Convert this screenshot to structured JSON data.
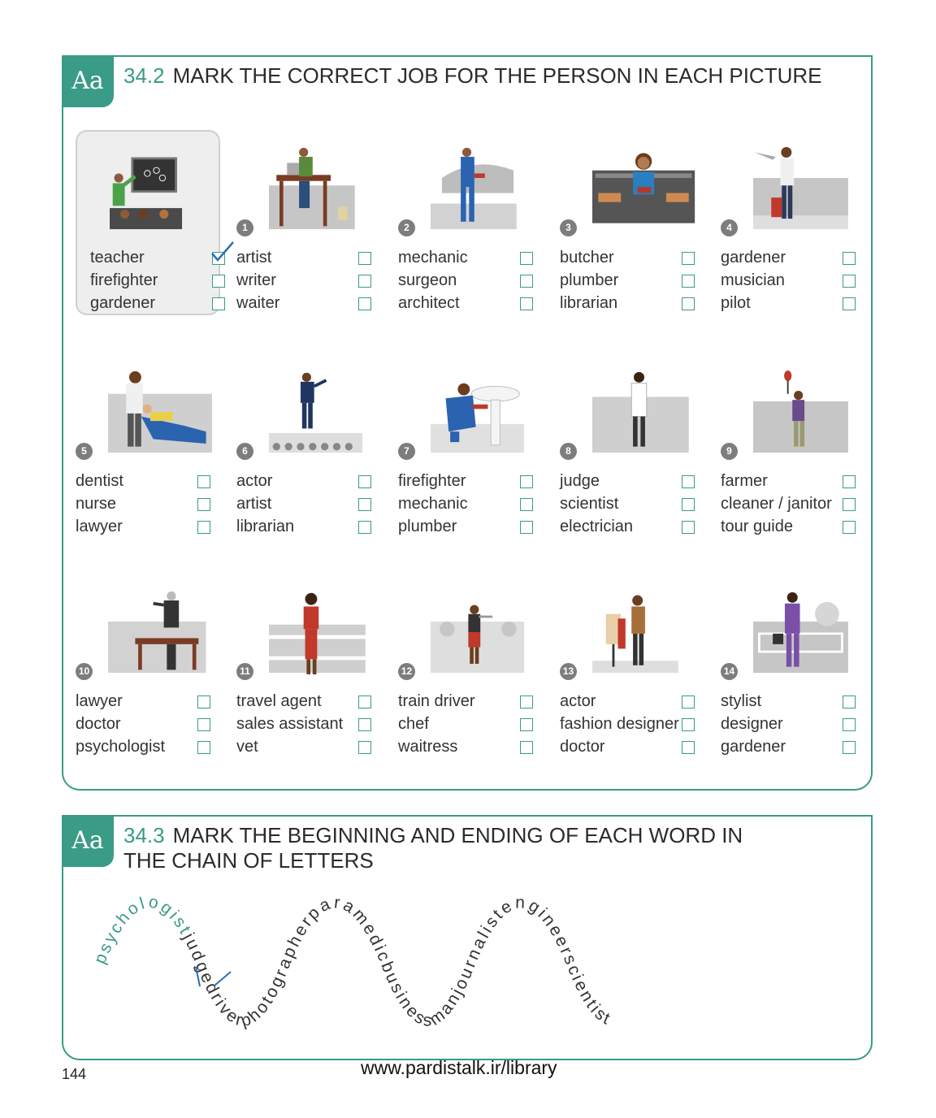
{
  "exercise_1": {
    "tab": "Aa",
    "number": "34.2",
    "title": "MARK THE CORRECT JOB FOR THE PERSON IN EACH PICTURE",
    "items": [
      {
        "badge": "",
        "options": [
          "teacher",
          "firefighter",
          "gardener"
        ],
        "checked": 0,
        "picture": "teacher-at-blackboard"
      },
      {
        "badge": "1",
        "options": [
          "artist",
          "writer",
          "waiter"
        ],
        "picture": "man-typing-at-desk"
      },
      {
        "badge": "2",
        "options": [
          "mechanic",
          "surgeon",
          "architect"
        ],
        "picture": "man-in-overalls-with-car"
      },
      {
        "badge": "3",
        "options": [
          "butcher",
          "plumber",
          "librarian"
        ],
        "picture": "woman-at-bookshelves"
      },
      {
        "badge": "4",
        "options": [
          "gardener",
          "musician",
          "pilot"
        ],
        "picture": "woman-with-suitcase-at-airport"
      },
      {
        "badge": "5",
        "options": [
          "dentist",
          "nurse",
          "lawyer"
        ],
        "picture": "man-with-patient-in-chair"
      },
      {
        "badge": "6",
        "options": [
          "actor",
          "artist",
          "librarian"
        ],
        "picture": "man-on-stage"
      },
      {
        "badge": "7",
        "options": [
          "firefighter",
          "mechanic",
          "plumber"
        ],
        "picture": "man-fixing-sink"
      },
      {
        "badge": "8",
        "options": [
          "judge",
          "scientist",
          "electrician"
        ],
        "picture": "woman-in-lab-coat"
      },
      {
        "badge": "9",
        "options": [
          "farmer",
          "cleaner / janitor",
          "tour guide"
        ],
        "picture": "woman-with-raised-paddle"
      },
      {
        "badge": "10",
        "options": [
          "lawyer",
          "doctor",
          "psychologist"
        ],
        "picture": "man-at-lectern"
      },
      {
        "badge": "11",
        "options": [
          "travel agent",
          "sales assistant",
          "vet"
        ],
        "picture": "woman-with-shoes"
      },
      {
        "badge": "12",
        "options": [
          "train driver",
          "chef",
          "waitress"
        ],
        "picture": "woman-serving-tables"
      },
      {
        "badge": "13",
        "options": [
          "actor",
          "fashion designer",
          "doctor"
        ],
        "picture": "man-with-mannequin"
      },
      {
        "badge": "14",
        "options": [
          "stylist",
          "designer",
          "gardener"
        ],
        "picture": "woman-in-park-with-bucket"
      }
    ]
  },
  "exercise_2": {
    "tab": "Aa",
    "number": "34.3",
    "title_line1": "MARK THE BEGINNING AND ENDING OF EACH WORD IN",
    "title_line2": "THE CHAIN OF LETTERS",
    "highlighted": "psychologist",
    "chain": "judgedriverphotographerparamedicbusinessmanjournalistengineerscientist"
  },
  "footer": {
    "page_number": "144",
    "website": "www.pardistalk.ir/library"
  },
  "colors": {
    "accent": "#3a9b86",
    "tick": "#2a6fb5",
    "badge": "#7d7d7d"
  }
}
